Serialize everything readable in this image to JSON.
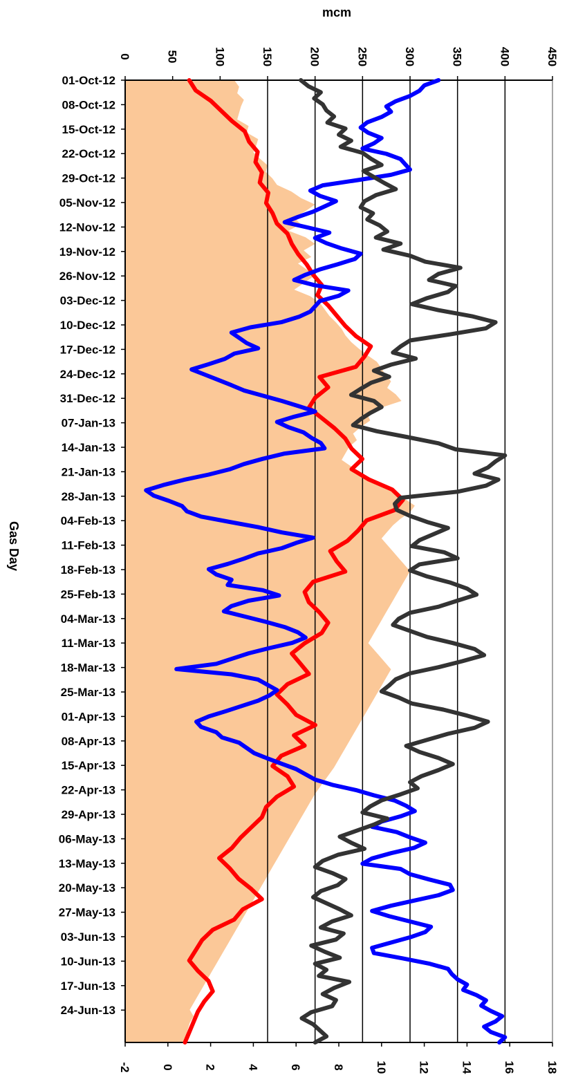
{
  "chart_data": {
    "type": "line",
    "orientation": "rotated-90",
    "xlabel": "Gas Day",
    "ylabel_primary": "mcm",
    "primary_axis": {
      "ylim": [
        0,
        450
      ],
      "ticks": [
        "0",
        "50",
        "100",
        "150",
        "200",
        "250",
        "300",
        "350",
        "400",
        "450"
      ]
    },
    "secondary_axis": {
      "ylim": [
        -2,
        18
      ],
      "ticks": [
        "-2",
        "0",
        "2",
        "4",
        "6",
        "8",
        "10",
        "12",
        "14",
        "16",
        "18"
      ]
    },
    "grid": true,
    "gridline_values": [
      150,
      200,
      250,
      300,
      350,
      400
    ],
    "date_ticks": [
      "01-Oct-12",
      "08-Oct-12",
      "15-Oct-12",
      "22-Oct-12",
      "29-Oct-12",
      "05-Nov-12",
      "12-Nov-12",
      "19-Nov-12",
      "26-Nov-12",
      "03-Dec-12",
      "10-Dec-12",
      "17-Dec-12",
      "24-Dec-12",
      "31-Dec-12",
      "07-Jan-13",
      "14-Jan-13",
      "21-Jan-13",
      "28-Jan-13",
      "04-Feb-13",
      "11-Feb-13",
      "18-Feb-13",
      "25-Feb-13",
      "04-Mar-13",
      "11-Mar-13",
      "18-Mar-13",
      "25-Mar-13",
      "01-Apr-13",
      "08-Apr-13",
      "15-Apr-13",
      "22-Apr-13",
      "29-Apr-13",
      "06-May-13",
      "13-May-13",
      "20-May-13",
      "27-May-13",
      "03-Jun-13",
      "10-Jun-13",
      "17-Jun-13",
      "24-Jun-13"
    ],
    "series": [
      {
        "role": "area (primary axis, mcm)",
        "color": "#fbc898",
        "values": [
          115,
          120,
          118,
          125,
          122,
          120,
          118,
          130,
          128,
          140,
          138,
          135,
          142,
          150,
          148,
          155,
          160,
          175,
          185,
          200,
          190,
          178,
          185,
          172,
          190,
          200,
          188,
          196,
          182,
          192,
          198,
          188,
          178,
          195,
          205,
          210,
          215,
          222,
          228,
          232,
          238,
          246,
          255,
          265,
          270,
          274,
          280,
          276,
          285,
          291,
          270,
          255,
          258,
          248,
          240,
          244,
          236,
          232,
          228,
          238,
          245,
          255,
          268,
          285,
          295,
          305,
          300,
          290,
          282,
          276,
          270,
          276,
          282,
          288,
          294,
          300,
          296,
          292,
          288,
          284,
          280,
          276,
          272,
          268,
          264,
          260,
          256,
          262,
          268,
          274,
          280,
          276,
          272,
          268,
          264,
          260,
          256,
          252,
          248,
          244,
          240,
          236,
          232,
          228,
          224,
          220,
          215,
          210,
          205,
          200,
          196,
          192,
          188,
          184,
          180,
          176,
          172,
          168,
          164,
          160,
          156,
          152,
          148,
          144,
          140,
          136,
          132,
          128,
          124,
          120,
          116,
          112,
          108,
          104,
          100,
          96,
          92,
          88,
          84,
          80,
          76,
          72,
          68,
          72,
          68,
          66,
          64,
          62
        ]
      },
      {
        "role": "line (secondary axis)",
        "color": "#ff0000",
        "values": [
          1.0,
          1.3,
          2.0,
          2.5,
          3.0,
          3.6,
          3.8,
          4.2,
          4.1,
          4.4,
          4.3,
          4.7,
          4.6,
          4.9,
          5.1,
          5.6,
          5.8,
          6.1,
          6.5,
          6.8,
          7.2,
          7.0,
          7.5,
          7.9,
          8.3,
          8.8,
          9.5,
          9.2,
          8.8,
          7.1,
          7.5,
          6.9,
          6.6,
          7.2,
          7.8,
          8.3,
          8.6,
          9.1,
          8.6,
          9.4,
          10.5,
          11.0,
          10.6,
          9.3,
          8.9,
          8.4,
          7.6,
          7.9,
          8.3,
          6.8,
          6.4,
          6.6,
          7.1,
          7.5,
          7.2,
          6.4,
          5.8,
          6.2,
          6.6,
          5.6,
          5.1,
          5.6,
          6.0,
          6.9,
          5.9,
          6.4,
          5.3,
          4.9,
          5.6,
          5.9,
          5.1,
          4.6,
          4.4,
          3.9,
          3.4,
          3.0,
          2.4,
          2.9,
          3.3,
          3.9,
          4.4,
          3.5,
          3.1,
          2.1,
          1.6,
          1.3,
          1.0,
          1.4,
          1.9,
          2.1,
          1.7,
          1.4,
          1.2,
          1.0,
          0.8
        ]
      },
      {
        "role": "line (primary axis, mcm)",
        "color": "#0000ff",
        "values": [
          330,
          315,
          310,
          300,
          285,
          275,
          280,
          270,
          255,
          248,
          256,
          270,
          262,
          250,
          275,
          290,
          295,
          300,
          280,
          245,
          208,
          195,
          205,
          222,
          210,
          198,
          182,
          168,
          192,
          215,
          200,
          212,
          228,
          248,
          242,
          224,
          205,
          190,
          178,
          200,
          235,
          225,
          205,
          200,
          195,
          183,
          165,
          132,
          112,
          120,
          128,
          140,
          115,
          105,
          88,
          70,
          84,
          98,
          112,
          125,
          145,
          165,
          183,
          200,
          178,
          160,
          172,
          188,
          196,
          206,
          210,
          168,
          145,
          125,
          110,
          88,
          62,
          40,
          22,
          30,
          46,
          60,
          65,
          80,
          110,
          140,
          165,
          198,
          180,
          165,
          140,
          125,
          108,
          88,
          96,
          112,
          108,
          145,
          162,
          130,
          112,
          104,
          126,
          148,
          168,
          182,
          190,
          176,
          152,
          130,
          113,
          96,
          54,
          112,
          140,
          150,
          160,
          152,
          140,
          123,
          106,
          88,
          75,
          80,
          96,
          102,
          120,
          128,
          136,
          150,
          165,
          180,
          190,
          200,
          218,
          243,
          262,
          284,
          296,
          305,
          290,
          270,
          260,
          286,
          300,
          316,
          304,
          280,
          260,
          250,
          290,
          300,
          320,
          342,
          345,
          330,
          305,
          280,
          260,
          278,
          300,
          322,
          316,
          300,
          280,
          260,
          262,
          292,
          320,
          340,
          344,
          350,
          360,
          356,
          370,
          380,
          375,
          385,
          397,
          390,
          378,
          385,
          400,
          394
        ]
      },
      {
        "role": "line (primary axis, mcm)",
        "color": "#333333",
        "values": [
          185,
          193,
          206,
          199,
          208,
          212,
          220,
          213,
          232,
          225,
          238,
          227,
          250,
          259,
          270,
          251,
          262,
          273,
          285,
          264,
          252,
          248,
          261,
          255,
          268,
          276,
          264,
          290,
          272,
          300,
          316,
          353,
          330,
          320,
          348,
          340,
          318,
          302,
          330,
          365,
          390,
          380,
          342,
          300,
          290,
          282,
          306,
          280,
          262,
          278,
          259,
          248,
          238,
          262,
          270,
          258,
          248,
          240,
          265,
          298,
          330,
          348,
          400,
          390,
          382,
          368,
          393,
          380,
          350,
          290,
          284,
          286,
          300,
          318,
          340,
          325,
          310,
          302,
          336,
          350,
          310,
          300,
          318,
          342,
          360,
          370,
          350,
          330,
          300,
          288,
          282,
          300,
          318,
          345,
          368,
          378,
          355,
          330,
          300,
          285,
          278,
          270,
          288,
          302,
          335,
          360,
          382,
          368,
          340,
          318,
          296,
          310,
          330,
          345,
          330,
          312,
          300,
          308,
          290,
          270,
          258,
          250,
          276,
          262,
          244,
          226,
          238,
          252,
          224,
          208,
          200,
          218,
          232,
          224,
          206,
          198,
          212,
          226,
          238,
          218,
          206,
          230,
          222,
          196,
          210,
          226,
          200,
          212,
          204,
          236,
          220,
          208,
          222,
          218,
          196,
          186,
          198,
          205,
          212,
          200
        ]
      }
    ]
  }
}
